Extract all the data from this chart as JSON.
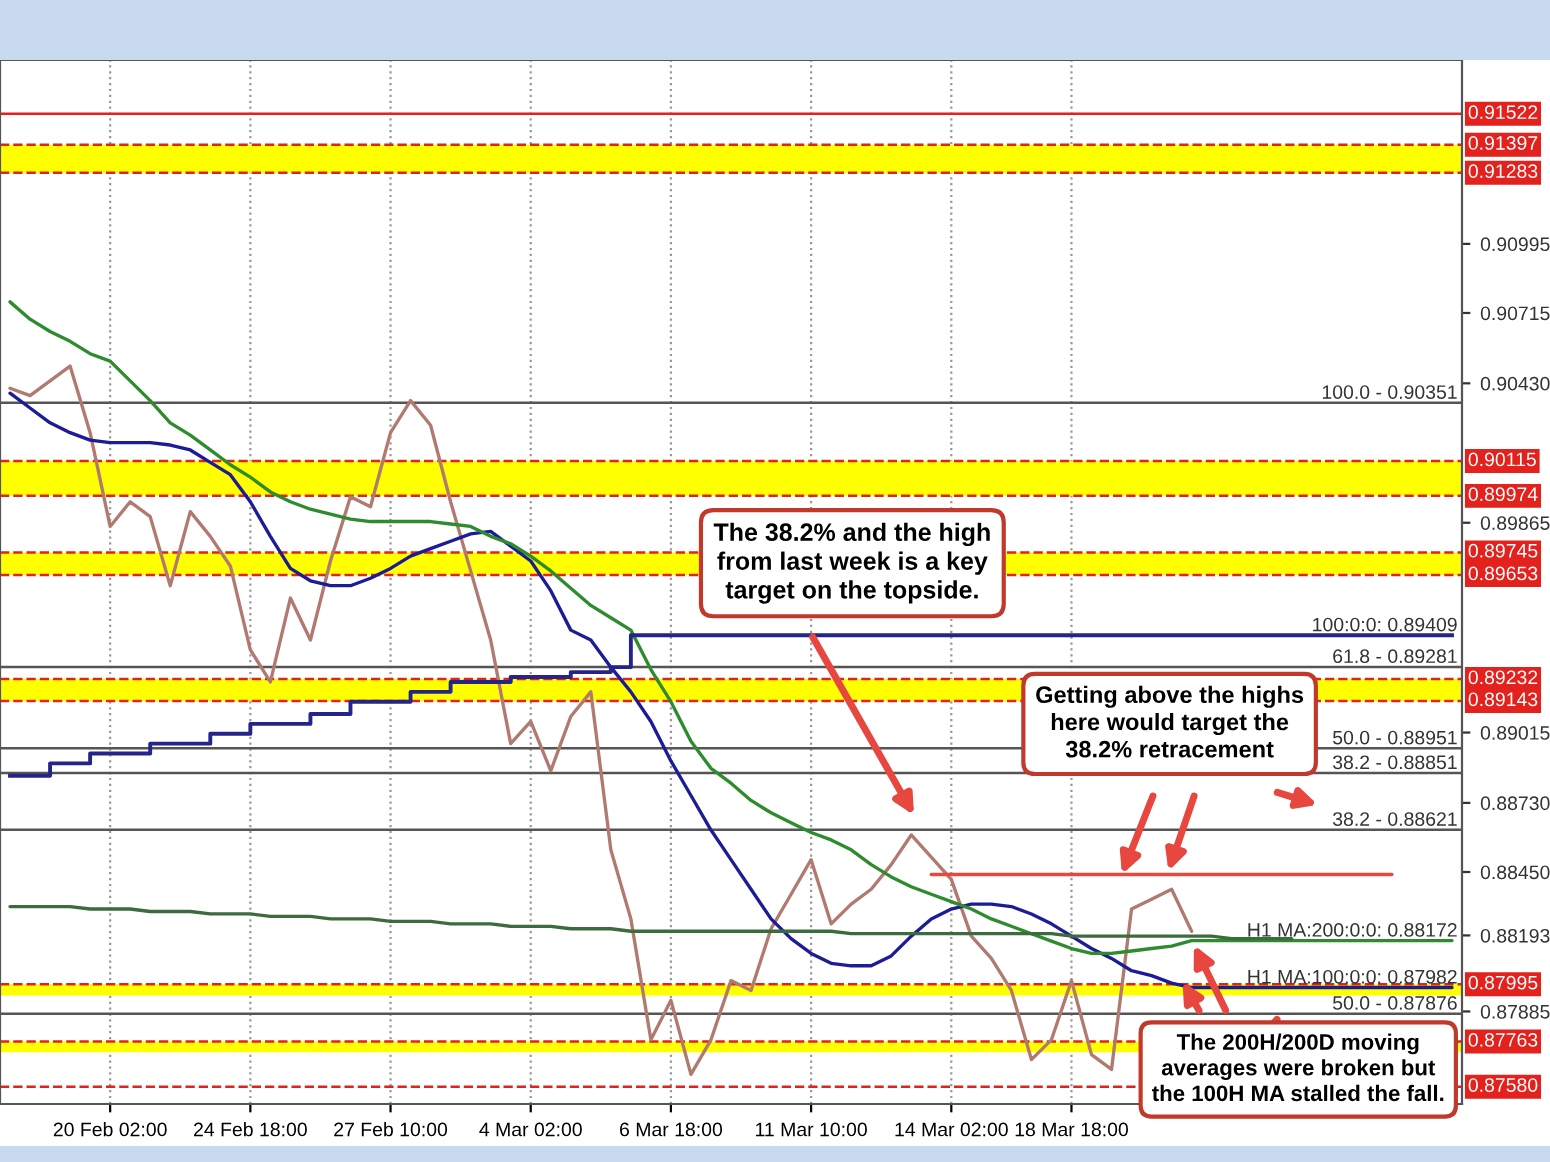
{
  "chart_data": {
    "type": "line",
    "categories": [
      null,
      null,
      null,
      null,
      null,
      "20 Feb 02:00",
      null,
      null,
      null,
      null,
      null,
      null,
      "24 Feb 18:00",
      null,
      null,
      null,
      null,
      null,
      null,
      "27 Feb 10:00",
      null,
      null,
      null,
      null,
      null,
      null,
      "4 Mar 02:00",
      null,
      null,
      null,
      null,
      null,
      null,
      "6 Mar 18:00",
      null,
      null,
      null,
      null,
      null,
      null,
      "11 Mar 10:00",
      null,
      null,
      null,
      null,
      null,
      null,
      "14 Mar 02:00",
      null,
      null,
      null,
      null,
      null,
      "18 Mar 18:00",
      null,
      null,
      null,
      null,
      null,
      null,
      null,
      null,
      null,
      null,
      null,
      null,
      null,
      null,
      null,
      null,
      null,
      null,
      null
    ],
    "series": [
      {
        "color": "#b07a70",
        "values": [
          0.9041,
          0.9038,
          0.9044,
          0.905,
          0.9023,
          0.8985,
          0.8995,
          0.8989,
          0.8961,
          0.8991,
          0.8981,
          0.8969,
          0.8935,
          0.8922,
          0.8956,
          0.8939,
          0.8971,
          0.8997,
          0.8993,
          0.9023,
          0.9036,
          0.9026,
          0.8995,
          0.8967,
          0.8939,
          0.8897,
          0.8906,
          0.8886,
          0.8908,
          0.8918,
          0.8854,
          0.8826,
          0.8777,
          0.8793,
          0.8763,
          0.8777,
          0.8801,
          0.8797,
          0.8822,
          0.8836,
          0.885,
          0.8824,
          0.8832,
          0.8838,
          0.8848,
          0.886,
          0.8851,
          0.8842,
          0.8819,
          0.881,
          0.8797,
          0.8769,
          0.8777,
          0.8801,
          0.8771,
          0.8765,
          0.883,
          0.8834,
          0.8838,
          0.8821,
          null,
          null,
          null,
          null,
          null,
          null,
          null,
          null,
          null,
          null,
          null,
          null,
          null
        ]
      },
      {
        "color": "#1c1c96",
        "values": [
          0.9039,
          0.9033,
          0.9027,
          0.9023,
          0.902,
          0.9019,
          0.9019,
          0.9019,
          0.9018,
          0.9016,
          0.9011,
          0.9006,
          0.8995,
          0.8981,
          0.8968,
          0.8963,
          0.8961,
          0.8961,
          0.8964,
          0.8968,
          0.8973,
          0.8976,
          0.8979,
          0.8982,
          0.8983,
          0.8977,
          0.8971,
          0.8959,
          0.8943,
          0.8939,
          0.8928,
          0.8918,
          0.8906,
          0.889,
          0.8876,
          0.8862,
          0.885,
          0.8838,
          0.8826,
          0.8818,
          0.8812,
          0.8808,
          0.8807,
          0.8807,
          0.8811,
          0.8819,
          0.8826,
          0.883,
          0.8832,
          0.8832,
          0.8831,
          0.8828,
          0.8824,
          0.8819,
          0.8814,
          0.881,
          0.8805,
          0.8803,
          0.88,
          0.87982,
          0.87982,
          0.87982,
          0.87982,
          0.87982,
          0.87982,
          0.87982,
          0.87982,
          0.87982,
          0.87982,
          0.87982,
          0.87982,
          0.87982,
          0.87982
        ]
      },
      {
        "color": "#2e8b2e",
        "values": [
          0.9076,
          0.9069,
          0.9064,
          0.906,
          0.9055,
          0.9052,
          0.9044,
          0.9036,
          0.9027,
          0.9022,
          0.9016,
          0.901,
          0.9005,
          0.8999,
          0.8995,
          0.8992,
          0.899,
          0.8988,
          0.8987,
          0.8987,
          0.8987,
          0.8987,
          0.8986,
          0.8985,
          0.8981,
          0.8978,
          0.8973,
          0.8967,
          0.896,
          0.8953,
          0.8948,
          0.8943,
          0.8927,
          0.8914,
          0.8898,
          0.8887,
          0.8881,
          0.8874,
          0.8869,
          0.8865,
          0.8861,
          0.8858,
          0.8854,
          0.8848,
          0.8843,
          0.8839,
          0.8836,
          0.8833,
          0.883,
          0.8826,
          0.8823,
          0.882,
          0.8817,
          0.8814,
          0.8812,
          0.8812,
          0.8813,
          0.8814,
          0.8815,
          0.88172,
          0.88172,
          0.88172,
          0.88172,
          0.88172,
          0.88172,
          0.88172,
          0.88172,
          0.88172,
          0.88172,
          0.88172,
          0.88172,
          0.88172,
          0.88172
        ]
      },
      {
        "color": "#3d6b3d",
        "values": [
          0.8831,
          0.8831,
          0.8831,
          0.8831,
          0.883,
          0.883,
          0.883,
          0.8829,
          0.8829,
          0.8829,
          0.8828,
          0.8828,
          0.8828,
          0.8827,
          0.8827,
          0.8827,
          0.8826,
          0.8826,
          0.8826,
          0.8825,
          0.8825,
          0.8825,
          0.8824,
          0.8824,
          0.8824,
          0.8823,
          0.8823,
          0.8823,
          0.8822,
          0.8822,
          0.8822,
          0.8821,
          0.8821,
          0.8821,
          0.8821,
          0.8821,
          0.8821,
          0.8821,
          0.8821,
          0.8821,
          0.8821,
          0.8821,
          0.882,
          0.882,
          0.882,
          0.882,
          0.882,
          0.882,
          0.882,
          0.882,
          0.882,
          0.882,
          0.882,
          0.8819,
          0.8819,
          0.8819,
          0.8819,
          0.8819,
          0.8819,
          0.8819,
          0.8819,
          0.8818,
          0.8818,
          0.8818,
          0.8818,
          null,
          null,
          null,
          null,
          null,
          null,
          null,
          null
        ]
      },
      {
        "type": "step",
        "color": "#24248a",
        "values": [
          0.8884,
          0.8884,
          0.8884,
          0.8889,
          0.8889,
          0.8893,
          0.8893,
          0.8893,
          0.8897,
          0.8897,
          0.8897,
          0.8901,
          0.8901,
          0.8905,
          0.8905,
          0.8905,
          0.8909,
          0.8909,
          0.8914,
          0.8914,
          0.8914,
          0.8918,
          0.8918,
          0.8922,
          0.8922,
          0.8922,
          0.8924,
          0.8924,
          0.8924,
          0.8926,
          0.8926,
          0.8928,
          0.89409,
          0.89409,
          0.89409,
          0.89409,
          0.89409,
          0.89409,
          0.89409,
          0.89409,
          0.89409,
          0.89409,
          0.89409,
          0.89409,
          0.89409,
          0.89409,
          0.89409,
          0.89409,
          0.89409,
          0.89409,
          0.89409,
          0.89409,
          0.89409,
          0.89409,
          0.89409,
          0.89409,
          0.89409,
          0.89409,
          0.89409,
          0.89409,
          0.89409,
          0.89409,
          0.89409,
          0.89409,
          0.89409,
          0.89409,
          0.89409,
          0.89409,
          0.89409,
          0.89409,
          0.89409,
          0.89409,
          0.89409
        ]
      },
      {
        "color": "#e8473f",
        "values": [
          null,
          null,
          null,
          null,
          null,
          null,
          null,
          null,
          null,
          null,
          null,
          null,
          null,
          null,
          null,
          null,
          null,
          null,
          null,
          null,
          null,
          null,
          null,
          null,
          null,
          null,
          null,
          null,
          null,
          null,
          null,
          null,
          null,
          null,
          null,
          null,
          null,
          null,
          null,
          null,
          null,
          null,
          null,
          null,
          null,
          null,
          0.8844,
          0.8844,
          0.8844,
          0.8844,
          0.8844,
          0.8844,
          0.8844,
          0.8844,
          0.8844,
          0.8844,
          0.8844,
          0.8844,
          0.8844,
          0.8844,
          0.8844,
          0.8844,
          0.8844,
          0.8844,
          0.8844,
          0.8844,
          0.8844,
          0.8844,
          0.8844,
          0.8844,
          null,
          null,
          null
        ]
      }
    ],
    "ylim": [
      0.8751,
      0.9174
    ],
    "yticks": [
      {
        "value": 0.90995,
        "label": "0.90995"
      },
      {
        "value": 0.90715,
        "label": "0.90715"
      },
      {
        "value": 0.9043,
        "label": "0.90430"
      },
      {
        "value": 0.89865,
        "label": "0.89865"
      },
      {
        "value": 0.89015,
        "label": "0.89015"
      },
      {
        "value": 0.8873,
        "label": "0.88730"
      },
      {
        "value": 0.8845,
        "label": "0.88450"
      },
      {
        "value": 0.88193,
        "label": "0.88193"
      },
      {
        "value": 0.87885,
        "label": "0.87885"
      }
    ],
    "grid": "x",
    "bands": [
      {
        "axis": "y",
        "from": 0.91283,
        "to": 0.91397,
        "color": "#ffff00"
      },
      {
        "axis": "y",
        "from": 0.89974,
        "to": 0.90115,
        "color": "#ffff00"
      },
      {
        "axis": "y",
        "from": 0.89653,
        "to": 0.89745,
        "color": "#ffff00"
      },
      {
        "axis": "y",
        "from": 0.89143,
        "to": 0.89232,
        "color": "#ffff00"
      },
      {
        "axis": "y",
        "from": 0.8795,
        "to": 0.87995,
        "color": "#ffff00"
      },
      {
        "axis": "y",
        "from": 0.8772,
        "to": 0.87763,
        "color": "#ffff00"
      }
    ],
    "ref_lines": [
      {
        "axis": "y",
        "value": 0.91522,
        "label": "0.91522",
        "color": "#e3211d",
        "line_style": "solid"
      },
      {
        "axis": "y",
        "value": 0.91397,
        "label": "0.91397",
        "color": "#e3211d",
        "line_style": "dashed"
      },
      {
        "axis": "y",
        "value": 0.91283,
        "label": "0.91283",
        "color": "#e3211d",
        "line_style": "dashed"
      },
      {
        "axis": "y",
        "value": 0.90115,
        "label": "0.90115",
        "color": "#e3211d",
        "line_style": "dashed"
      },
      {
        "axis": "y",
        "value": 0.89974,
        "label": "0.89974",
        "color": "#e3211d",
        "line_style": "dashed"
      },
      {
        "axis": "y",
        "value": 0.89745,
        "label": "0.89745",
        "color": "#e3211d",
        "line_style": "dashed"
      },
      {
        "axis": "y",
        "value": 0.89653,
        "label": "0.89653",
        "color": "#e3211d",
        "line_style": "dashed"
      },
      {
        "axis": "y",
        "value": 0.89232,
        "label": "0.89232",
        "color": "#e3211d",
        "line_style": "dashed"
      },
      {
        "axis": "y",
        "value": 0.89143,
        "label": "0.89143",
        "color": "#e3211d",
        "line_style": "dashed"
      },
      {
        "axis": "y",
        "value": 0.87995,
        "label": "0.87995",
        "color": "#e3211d",
        "line_style": "dashed"
      },
      {
        "axis": "y",
        "value": 0.87763,
        "label": "0.87763",
        "color": "#e3211d",
        "line_style": "dashed"
      },
      {
        "axis": "y",
        "value": 0.8758,
        "label": "0.87580",
        "color": "#e3211d",
        "line_style": "dashed"
      },
      {
        "axis": "y",
        "value": 0.90351,
        "color": "#555555",
        "line_style": "solid"
      },
      {
        "axis": "y",
        "value": 0.89281,
        "color": "#555555",
        "line_style": "solid"
      },
      {
        "axis": "y",
        "value": 0.88951,
        "color": "#555555",
        "line_style": "solid"
      },
      {
        "axis": "y",
        "value": 0.88851,
        "color": "#555555",
        "line_style": "solid"
      },
      {
        "axis": "y",
        "value": 0.88621,
        "color": "#555555",
        "line_style": "solid"
      },
      {
        "axis": "y",
        "value": 0.87876,
        "color": "#555555",
        "line_style": "solid"
      }
    ],
    "annotations": [
      "The 38.2% and the high\nfrom last week is a key\ntarget on the topside.",
      "Getting above the highs\nhere would target the\n38.2% retracement",
      "The 200H/200D moving\naverages were broken but\nthe 100H MA stalled the fall.",
      {
        "text": "100.0 - 0.90351",
        "y": 0.90351
      },
      {
        "text": "61.8 - 0.89281",
        "y": 0.89281
      },
      {
        "text": "50.0 - 0.88951",
        "y": 0.88951
      },
      {
        "text": "38.2 - 0.88851",
        "y": 0.88851
      },
      {
        "text": "38.2 - 0.88621",
        "y": 0.88621
      },
      {
        "text": "50.0 - 0.87876",
        "y": 0.87876
      },
      {
        "text": "100:0:0: 0.89409",
        "y": 0.89409
      },
      {
        "text": "H1 MA:200:0:0: 0.88172",
        "y": 0.88172
      },
      {
        "text": "H1 MA:100:0:0: 0.87982",
        "y": 0.87982
      }
    ]
  }
}
